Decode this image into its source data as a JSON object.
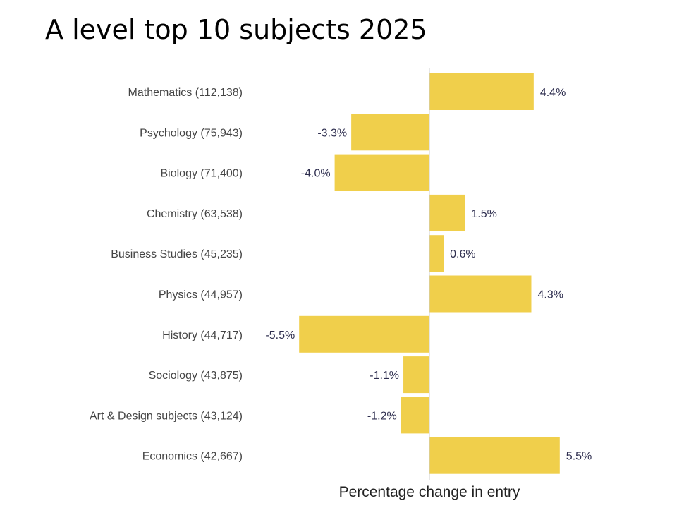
{
  "title": "A level top 10 subjects 2025",
  "chart_data": {
    "type": "bar",
    "orientation": "horizontal",
    "title": "A level top 10 subjects 2025",
    "xlabel": "Percentage change in entry",
    "ylabel": "",
    "categories": [
      "Mathematics (112,138)",
      "Psychology (75,943)",
      "Biology (71,400)",
      "Chemistry (63,538)",
      "Business Studies (45,235)",
      "Physics (44,957)",
      "History (44,717)",
      "Sociology (43,875)",
      "Art & Design subjects (43,124)",
      "Economics (42,667)"
    ],
    "values": [
      4.4,
      -3.3,
      -4.0,
      1.5,
      0.6,
      4.3,
      -5.5,
      -1.1,
      -1.2,
      5.5
    ],
    "value_labels": [
      "4.4%",
      "-3.3%",
      "-4.0%",
      "1.5%",
      "0.6%",
      "4.3%",
      "-5.5%",
      "-1.1%",
      "-1.2%",
      "5.5%"
    ],
    "xlim": [
      -5.5,
      5.5
    ],
    "grid": false,
    "legend": "none",
    "bar_color": "#F0CF4B",
    "axis_color": "#cccccc"
  }
}
